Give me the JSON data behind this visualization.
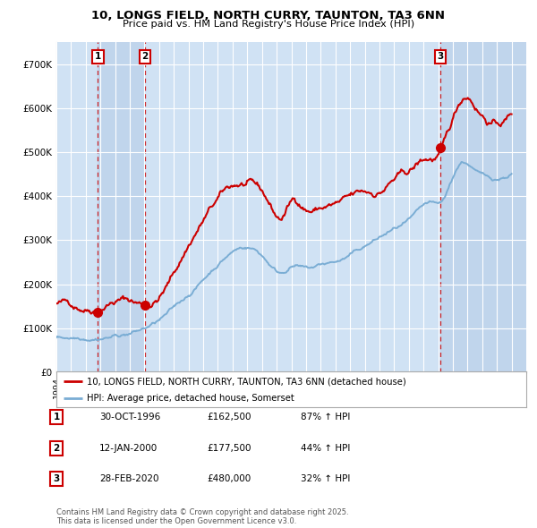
{
  "title": "10, LONGS FIELD, NORTH CURRY, TAUNTON, TA3 6NN",
  "subtitle": "Price paid vs. HM Land Registry's House Price Index (HPI)",
  "bg_color": "#ffffff",
  "plot_bg_color": "#dce8f5",
  "grid_color": "#ffffff",
  "year_start": 1994,
  "year_end": 2026,
  "ylim_min": 0,
  "ylim_max": 750000,
  "yticks": [
    0,
    100000,
    200000,
    300000,
    400000,
    500000,
    600000,
    700000
  ],
  "ytick_labels": [
    "£0",
    "£100K",
    "£200K",
    "£300K",
    "£400K",
    "£500K",
    "£600K",
    "£700K"
  ],
  "red_line_color": "#cc0000",
  "blue_line_color": "#7aadd4",
  "marker_color": "#cc0000",
  "vline_color": "#cc0000",
  "transactions": [
    {
      "date_num": 1996.83,
      "price": 162500,
      "label": "1",
      "date_str": "30-OCT-1996",
      "pct": "87%"
    },
    {
      "date_num": 2000.04,
      "price": 177500,
      "label": "2",
      "date_str": "12-JAN-2000",
      "pct": "44%"
    },
    {
      "date_num": 2020.16,
      "price": 480000,
      "label": "3",
      "date_str": "28-FEB-2020",
      "pct": "32%"
    }
  ],
  "legend_entries": [
    {
      "label": "10, LONGS FIELD, NORTH CURRY, TAUNTON, TA3 6NN (detached house)",
      "color": "#cc0000"
    },
    {
      "label": "HPI: Average price, detached house, Somerset",
      "color": "#7aadd4"
    }
  ],
  "table_rows": [
    {
      "num": "1",
      "date": "30-OCT-1996",
      "price": "£162,500",
      "hpi": "87% ↑ HPI"
    },
    {
      "num": "2",
      "date": "12-JAN-2000",
      "price": "£177,500",
      "hpi": "44% ↑ HPI"
    },
    {
      "num": "3",
      "date": "28-FEB-2020",
      "price": "£480,000",
      "hpi": "32% ↑ HPI"
    }
  ],
  "footnote": "Contains HM Land Registry data © Crown copyright and database right 2025.\nThis data is licensed under the Open Government Licence v3.0.",
  "red_key_years": [
    1994,
    1995,
    1996.83,
    1997.5,
    1999,
    2000.04,
    2001.5,
    2003,
    2004.5,
    2007.5,
    2008.5,
    2009.3,
    2010,
    2011,
    2012,
    2013,
    2014,
    2015,
    2016,
    2017,
    2018,
    2019,
    2020.16,
    2021,
    2022,
    2022.5,
    2023.5,
    2025.0
  ],
  "red_key_vals": [
    155000,
    153000,
    162500,
    178000,
    186000,
    177500,
    220000,
    315000,
    395000,
    430000,
    385000,
    352000,
    388000,
    378000,
    382000,
    388000,
    393000,
    398000,
    402000,
    430000,
    440000,
    465000,
    480000,
    545000,
    605000,
    590000,
    558000,
    578000
  ],
  "blue_key_years": [
    1994,
    1996,
    1998,
    2000,
    2002,
    2004,
    2007.5,
    2008.5,
    2009.3,
    2010,
    2011,
    2012,
    2013,
    2015,
    2017,
    2018.5,
    2019.5,
    2020.16,
    2021.5,
    2022.5,
    2023.5,
    2025.0
  ],
  "blue_key_vals": [
    78000,
    84000,
    96000,
    113000,
    153000,
    218000,
    292000,
    262000,
    243000,
    260000,
    252000,
    257000,
    263000,
    293000,
    328000,
    353000,
    368000,
    363000,
    453000,
    438000,
    418000,
    432000
  ]
}
